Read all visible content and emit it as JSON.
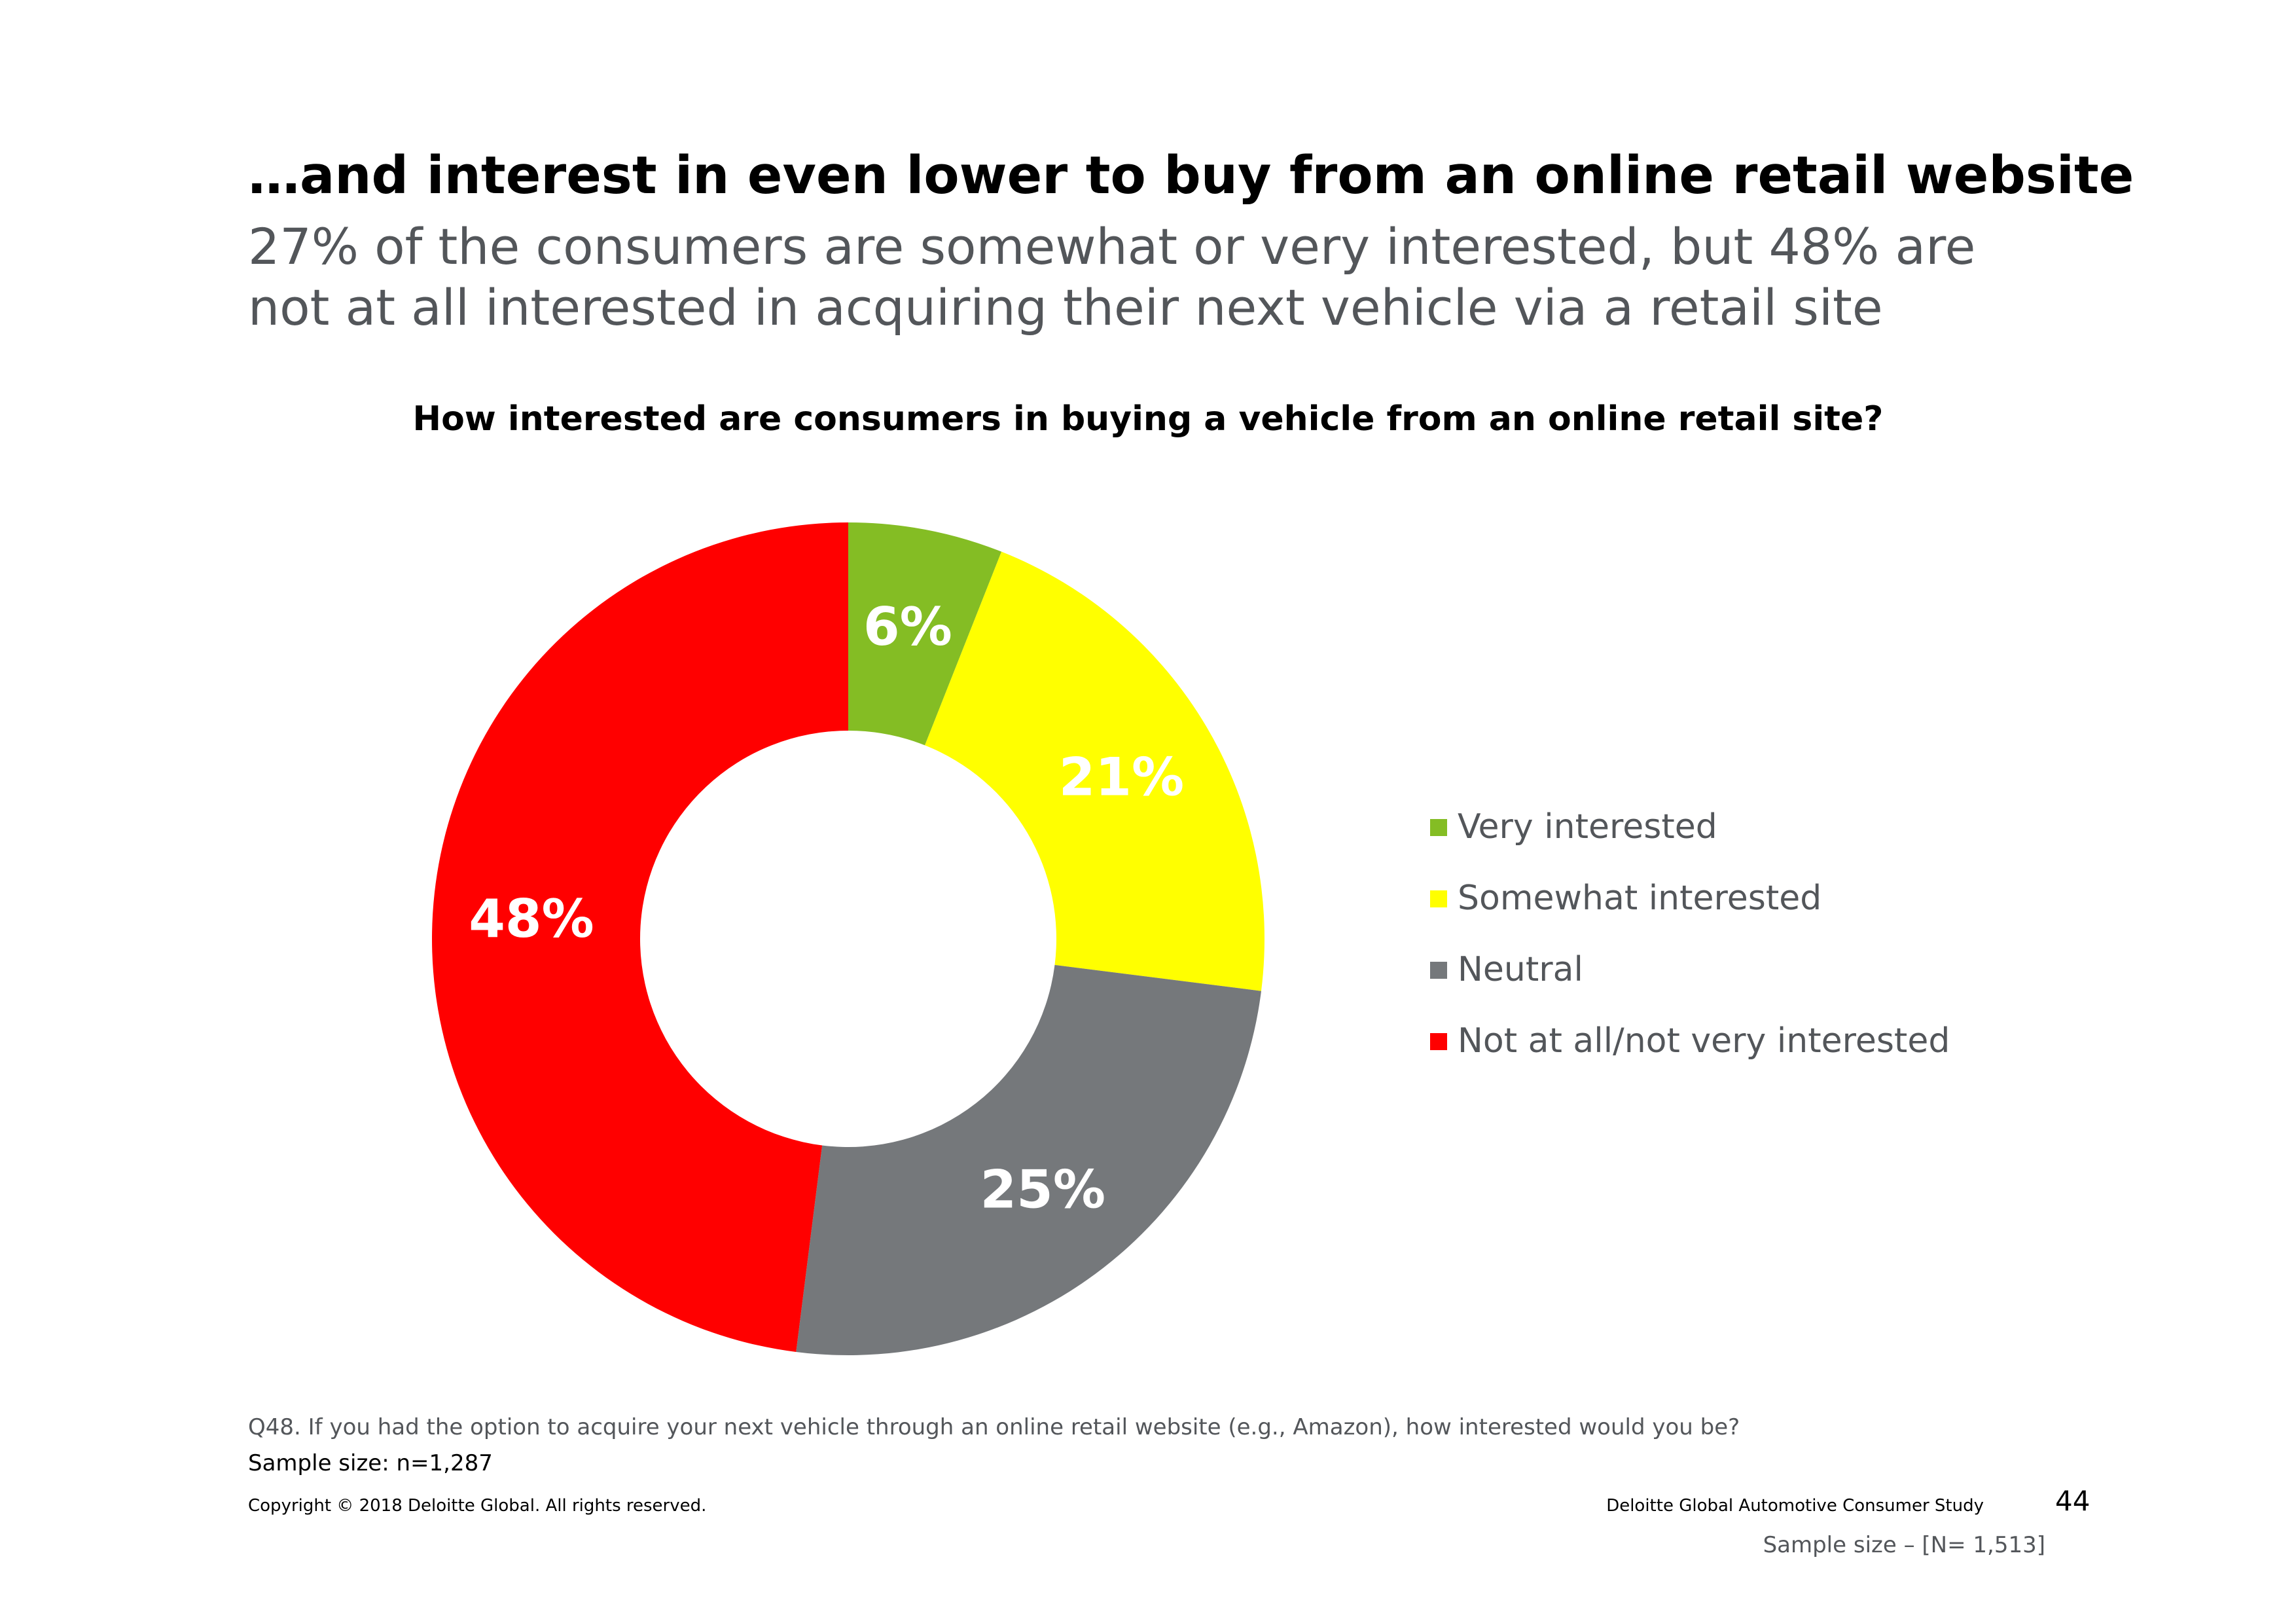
{
  "header": {
    "title": "…and interest in even lower to buy from an online retail website",
    "subtitle": "27% of the consumers are somewhat or very interested, but 48% are not at all interested in acquiring their next vehicle via a retail site"
  },
  "chart_data": {
    "type": "pie",
    "style": "donut",
    "title": "How interested are consumers in buying a vehicle from an online retail site?",
    "unit": "%",
    "legend_position": "right",
    "start_angle": "top, clockwise",
    "categories": [
      "Very interested",
      "Somewhat interested",
      "Neutral",
      "Not at all/not very interested"
    ],
    "values": [
      6,
      21,
      25,
      48
    ],
    "labels": [
      "6%",
      "21%",
      "25%",
      "48%"
    ],
    "colors": [
      "#84bd24",
      "#ffff00",
      "#75787b",
      "#ff0000"
    ]
  },
  "footer": {
    "question": "Q48. If you had the option to acquire your next vehicle through an online retail website (e.g., Amazon), how interested would you be?",
    "sample_size": "Sample size: n=1,287",
    "copyright": "Copyright © 2018 Deloitte Global. All rights reserved.",
    "study_name": "Deloitte Global Automotive Consumer Study",
    "page_number": "44",
    "total_sample": "Sample size – [N= 1,513]"
  }
}
